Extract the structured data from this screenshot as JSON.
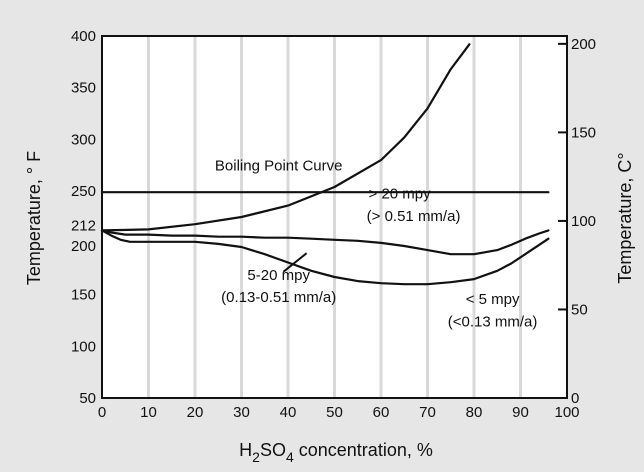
{
  "chart_data": {
    "type": "line",
    "title": "",
    "xlabel": {
      "pre": "H",
      "sub1": "2",
      "mid": "SO",
      "sub2": "4",
      "post": " concentration, %"
    },
    "ylabel_left": "Temperature, ° F",
    "ylabel_right": "Temperature, C°",
    "xlim": [
      0,
      100
    ],
    "ylim_left": [
      50,
      400
    ],
    "ylim_right": [
      0,
      204.44
    ],
    "x_ticks": [
      0,
      10,
      20,
      30,
      40,
      50,
      60,
      70,
      80,
      90,
      100
    ],
    "y_ticks_left": [
      50,
      100,
      150,
      200,
      212,
      250,
      300,
      350,
      400
    ],
    "y_ticks_right": [
      0,
      50,
      100,
      150,
      200
    ],
    "grid": "vertical",
    "plot_background": "#ffffff",
    "page_background": "#e6e6e6",
    "line_color": "#111111",
    "series": [
      {
        "name": "Boiling Point Curve",
        "x": [
          0,
          10,
          20,
          30,
          40,
          50,
          60,
          65,
          70,
          75,
          79
        ],
        "y": [
          212,
          213,
          218,
          225,
          236,
          254,
          280,
          302,
          330,
          368,
          392
        ]
      },
      {
        "name": "",
        "x": [
          0,
          50,
          60,
          70,
          78,
          82,
          86,
          90,
          94,
          96
        ],
        "y": [
          249,
          249,
          249,
          249,
          249,
          249,
          249,
          249,
          249,
          249
        ]
      },
      {
        "name": "",
        "x": [
          0,
          2,
          5,
          10,
          15,
          20,
          25,
          30,
          35,
          40,
          45,
          50,
          55,
          60,
          65,
          70,
          75,
          80,
          85,
          88,
          91,
          94,
          96
        ],
        "y": [
          212,
          210,
          208,
          208,
          207,
          207,
          206,
          206,
          205,
          205,
          204,
          203,
          202,
          200,
          197,
          193,
          189,
          189,
          193,
          198,
          204,
          209,
          212
        ]
      },
      {
        "name": "",
        "x": [
          0,
          2,
          4,
          6,
          8,
          10,
          15,
          20,
          25,
          30,
          35,
          40,
          45,
          50,
          55,
          60,
          65,
          70,
          75,
          80,
          85,
          88,
          91,
          94,
          96
        ],
        "y": [
          212,
          207,
          203,
          201,
          201,
          201,
          201,
          201,
          199,
          196,
          189,
          181,
          173,
          167,
          163,
          161,
          160,
          160,
          162,
          165,
          173,
          180,
          189,
          198,
          204
        ]
      }
    ],
    "annotations": [
      {
        "text": "Boiling Point Curve",
        "x": 38,
        "y": 270,
        "anchor": "middle"
      },
      {
        "text": "> 20 mpy",
        "x": 64,
        "y": 243,
        "anchor": "middle"
      },
      {
        "text": "(> 0.51 mm/a)",
        "x": 67,
        "y": 221,
        "anchor": "middle"
      },
      {
        "text": "5-20 mpy",
        "x": 38,
        "y": 164,
        "anchor": "middle"
      },
      {
        "text": "(0.13-0.51 mm/a)",
        "x": 38,
        "y": 143,
        "anchor": "middle"
      },
      {
        "text": "< 5 mpy",
        "x": 84,
        "y": 141,
        "anchor": "middle"
      },
      {
        "text": "(<0.13 mm/a)",
        "x": 84,
        "y": 119,
        "anchor": "middle"
      }
    ],
    "marker": {
      "x1": 39,
      "y1": 172,
      "x2": 44,
      "y2": 190
    }
  }
}
